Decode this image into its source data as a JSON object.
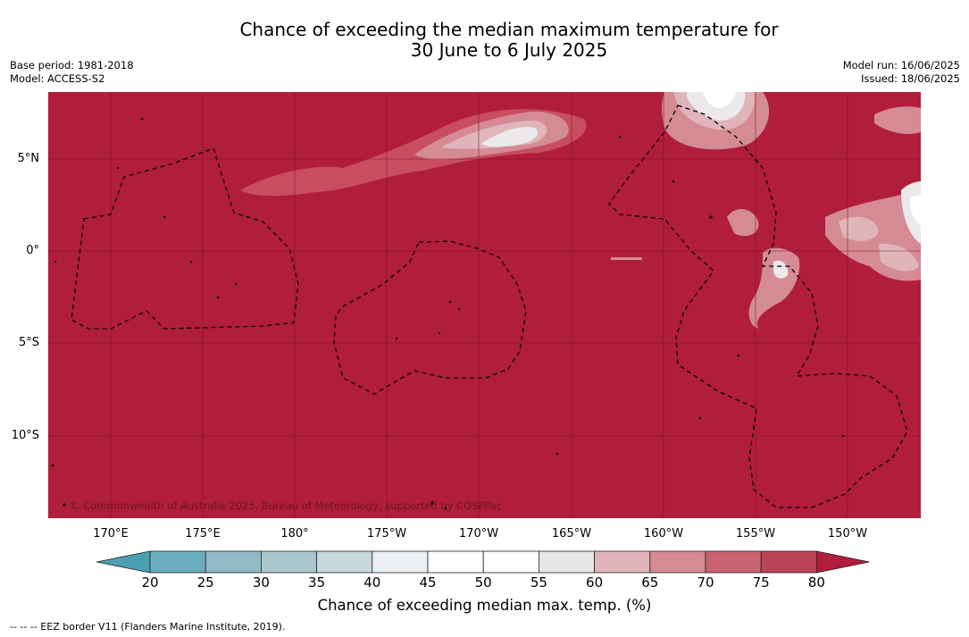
{
  "title": {
    "line1": "Chance of exceeding the median maximum temperature for",
    "line2": "30 June to 6 July 2025"
  },
  "meta": {
    "base_period": "Base period: 1981-2018",
    "model": "Model: ACCESS-S2",
    "model_run": "Model run: 16/06/2025",
    "issued": "Issued: 18/06/2025"
  },
  "map": {
    "lat_labels": [
      "5°N",
      "0°",
      "5°S",
      "10°S"
    ],
    "lon_labels": [
      "170°E",
      "175°E",
      "180°",
      "175°W",
      "170°W",
      "165°W",
      "160°W",
      "155°W",
      "150°W"
    ],
    "copyright": "© Commonwealth of Australia 2025, Bureau of Meteorology, supported by COSPPac",
    "background_color": "#b01e3b"
  },
  "colorbar": {
    "ticks": [
      "20",
      "25",
      "30",
      "35",
      "40",
      "45",
      "50",
      "55",
      "60",
      "65",
      "70",
      "75",
      "80"
    ],
    "colors": [
      "#4aa0b0",
      "#6aadbe",
      "#8fbac6",
      "#a9c8cd",
      "#c6d8dc",
      "#ebeff2",
      "#ffffff",
      "#ffffff",
      "#e9e6e8",
      "#dfb5bb",
      "#d48b94",
      "#c86270",
      "#bc4356",
      "#b01e3b"
    ],
    "label": "Chance of exceeding median max. temp. (%)"
  },
  "footnote": "--  --  -- EEZ border V11 (Flanders Marine Institute, 2019)."
}
